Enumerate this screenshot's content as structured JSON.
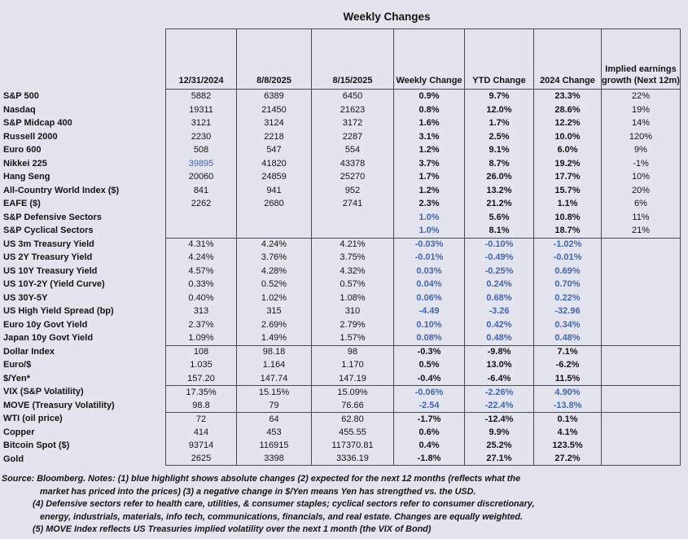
{
  "title": "Weekly Changes",
  "colors": {
    "blue_highlight": "#4066b2",
    "background": "#e4e4ee"
  },
  "columns": [
    "12/31/2024",
    "8/8/2025",
    "8/15/2025",
    "Weekly Change",
    "YTD Change",
    "2024 Change",
    "Implied earnings growth (Next 12m)"
  ],
  "rows": [
    {
      "label": "S&P 500",
      "values": [
        "5882",
        "6389",
        "6450",
        "0.9%",
        "9.7%",
        "23.3%",
        "22%"
      ],
      "blue": []
    },
    {
      "label": "Nasdaq",
      "values": [
        "19311",
        "21450",
        "21623",
        "0.8%",
        "12.0%",
        "28.6%",
        "19%"
      ],
      "blue": []
    },
    {
      "label": "S&P Midcap 400",
      "values": [
        "3121",
        "3124",
        "3172",
        "1.6%",
        "1.7%",
        "12.2%",
        "14%"
      ],
      "blue": []
    },
    {
      "label": "Russell 2000",
      "values": [
        "2230",
        "2218",
        "2287",
        "3.1%",
        "2.5%",
        "10.0%",
        "120%"
      ],
      "blue": []
    },
    {
      "label": "Euro 600",
      "values": [
        "508",
        "547",
        "554",
        "1.2%",
        "9.1%",
        "6.0%",
        "9%"
      ],
      "blue": []
    },
    {
      "label": "Nikkei 225",
      "values": [
        "39895",
        "41820",
        "43378",
        "3.7%",
        "8.7%",
        "19.2%",
        "-1%"
      ],
      "blue": [
        0
      ]
    },
    {
      "label": "Hang Seng",
      "values": [
        "20060",
        "24859",
        "25270",
        "1.7%",
        "26.0%",
        "17.7%",
        "10%"
      ],
      "blue": []
    },
    {
      "label": "All-Country World Index ($)",
      "values": [
        "841",
        "941",
        "952",
        "1.2%",
        "13.2%",
        "15.7%",
        "20%"
      ],
      "blue": []
    },
    {
      "label": "EAFE ($)",
      "values": [
        "2262",
        "2680",
        "2741",
        "2.3%",
        "21.2%",
        "1.1%",
        "6%"
      ],
      "blue": []
    },
    {
      "label": "S&P Defensive Sectors",
      "values": [
        "",
        "",
        "",
        "1.0%",
        "5.6%",
        "10.8%",
        "11%"
      ],
      "blue": [
        3
      ]
    },
    {
      "label": "S&P Cyclical Sectors",
      "values": [
        "",
        "",
        "",
        "1.0%",
        "8.1%",
        "18.7%",
        "21%"
      ],
      "blue": [
        3
      ]
    },
    {
      "label": "US 3m Treasury Yield",
      "values": [
        "4.31%",
        "4.24%",
        "4.21%",
        "-0.03%",
        "-0.10%",
        "-1.02%",
        ""
      ],
      "blue": [
        3,
        4,
        5
      ],
      "section": true
    },
    {
      "label": "US 2Y Treasury Yield",
      "values": [
        "4.24%",
        "3.76%",
        "3.75%",
        "-0.01%",
        "-0.49%",
        "-0.01%",
        ""
      ],
      "blue": [
        3,
        4,
        5
      ]
    },
    {
      "label": "US 10Y Treasury Yield",
      "values": [
        "4.57%",
        "4.28%",
        "4.32%",
        "0.03%",
        "-0.25%",
        "0.69%",
        ""
      ],
      "blue": [
        3,
        4,
        5
      ]
    },
    {
      "label": "US 10Y-2Y (Yield Curve)",
      "values": [
        "0.33%",
        "0.52%",
        "0.57%",
        "0.04%",
        "0.24%",
        "0.70%",
        ""
      ],
      "blue": [
        3,
        4,
        5
      ]
    },
    {
      "label": "US 30Y-5Y",
      "values": [
        "0.40%",
        "1.02%",
        "1.08%",
        "0.06%",
        "0.68%",
        "0.22%",
        ""
      ],
      "blue": [
        3,
        4,
        5
      ]
    },
    {
      "label": "US High Yield Spread (bp)",
      "values": [
        "313",
        "315",
        "310",
        "-4.49",
        "-3.26",
        "-32.96",
        ""
      ],
      "blue": [
        3,
        4,
        5
      ]
    },
    {
      "label": "Euro 10y Govt Yield",
      "values": [
        "2.37%",
        "2.69%",
        "2.79%",
        "0.10%",
        "0.42%",
        "0.34%",
        ""
      ],
      "blue": [
        3,
        4,
        5
      ]
    },
    {
      "label": "Japan 10y Govt Yield",
      "values": [
        "1.09%",
        "1.49%",
        "1.57%",
        "0.08%",
        "0.48%",
        "0.48%",
        ""
      ],
      "blue": [
        3,
        4,
        5
      ]
    },
    {
      "label": "Dollar Index",
      "values": [
        "108",
        "98.18",
        "98",
        "-0.3%",
        "-9.8%",
        "7.1%",
        ""
      ],
      "blue": [],
      "section": true
    },
    {
      "label": "Euro/$",
      "values": [
        "1.035",
        "1.164",
        "1.170",
        "0.5%",
        "13.0%",
        "-6.2%",
        ""
      ],
      "blue": []
    },
    {
      "label": "$/Yen*",
      "values": [
        "157.20",
        "147.74",
        "147.19",
        "-0.4%",
        "-6.4%",
        "11.5%",
        ""
      ],
      "blue": []
    },
    {
      "label": "VIX (S&P Volatility)",
      "values": [
        "17.35%",
        "15.15%",
        "15.09%",
        "-0.06%",
        "-2.26%",
        "4.90%",
        ""
      ],
      "blue": [
        3,
        4,
        5
      ],
      "section": true
    },
    {
      "label": "MOVE (Treasury Volatility)",
      "values": [
        "98.8",
        "79",
        "76.66",
        "-2.54",
        "-22.4%",
        "-13.8%",
        ""
      ],
      "blue": [
        3,
        4,
        5
      ]
    },
    {
      "label": "WTI (oil price)",
      "values": [
        "72",
        "64",
        "62.80",
        "-1.7%",
        "-12.4%",
        "0.1%",
        ""
      ],
      "blue": [],
      "section": true
    },
    {
      "label": "Copper",
      "values": [
        "414",
        "453",
        "455.55",
        "0.6%",
        "9.9%",
        "4.1%",
        ""
      ],
      "blue": []
    },
    {
      "label": "Bitcoin Spot ($)",
      "values": [
        "93714",
        "116915",
        "117370.81",
        "0.4%",
        "25.2%",
        "123.5%",
        ""
      ],
      "blue": []
    },
    {
      "label": "Gold",
      "values": [
        "2625",
        "3398",
        "3336.19",
        "-1.8%",
        "27.1%",
        "27.2%",
        ""
      ],
      "blue": []
    }
  ],
  "notes": [
    {
      "text": "Source: Bloomberg. Notes: (1) blue highlight shows absolute changes (2) expected for the next 12 months (reflects what the",
      "indent": 0
    },
    {
      "text": "market has priced into the prices) (3) a negative change in $/Yen means Yen has strengthed vs. the USD.",
      "indent": 47
    },
    {
      "text": "(4) Defensive sectors refer to health care, utilities, & consumer staples; cyclical sectors refer to consumer discretionary,",
      "indent": 38
    },
    {
      "text": "energy, industrials, materials, info tech, communications, financials, and real estate. Changes are equally weighted.",
      "indent": 47
    },
    {
      "text": "(5) MOVE Index reflects US Treasuries implied volatility over the next 1 month (the VIX of Bond)",
      "indent": 38
    }
  ]
}
